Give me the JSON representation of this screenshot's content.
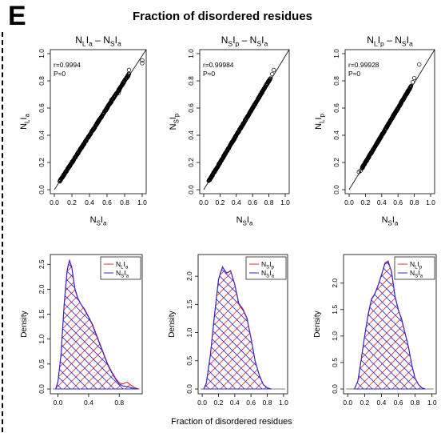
{
  "panel_letter": "E",
  "title": "Fraction of disordered residues",
  "bottom_xlabel": "Fraction of disordered residues",
  "colors": {
    "series1": "#e03030",
    "series2": "#2a2ad8",
    "axis": "#000000"
  },
  "chart_data": [
    {
      "type": "scatter",
      "title": {
        "main": "N",
        "main_sub": "L",
        "main2": "I",
        "main2_sub": "a",
        "sep": " – ",
        "ref": "N",
        "ref_sub": "S",
        "ref2": "I",
        "ref2_sub": "a"
      },
      "xlabel": {
        "a": "N",
        "a_sub": "S",
        "b": "I",
        "b_sub": "a"
      },
      "ylabel": {
        "a": "N",
        "a_sub": "L",
        "b": "I",
        "b_sub": "a"
      },
      "annotation": [
        "r=0.9994",
        "P≈0"
      ],
      "xlim": [
        0,
        1.0
      ],
      "ylim": [
        0,
        1.0
      ],
      "xticks": [
        "0.0",
        "0.2",
        "0.4",
        "0.6",
        "0.8",
        "1.0"
      ],
      "yticks": [
        "0.0",
        "0.2",
        "0.4",
        "0.6",
        "0.8",
        "1.0"
      ],
      "range": [
        0.06,
        0.85
      ],
      "outliers": [
        [
          0.65,
          0.66
        ],
        [
          0.68,
          0.68
        ],
        [
          0.73,
          0.71
        ],
        [
          0.74,
          0.73
        ],
        [
          0.84,
          0.84
        ],
        [
          0.85,
          0.88
        ],
        [
          1.0,
          0.95
        ],
        [
          1.0,
          0.93
        ]
      ],
      "diagonal": true
    },
    {
      "type": "scatter",
      "title": {
        "main": "N",
        "main_sub": "S",
        "main2": "I",
        "main2_sub": "p",
        "sep": " – ",
        "ref": "N",
        "ref_sub": "S",
        "ref2": "I",
        "ref2_sub": "a"
      },
      "xlabel": {
        "a": "N",
        "a_sub": "S",
        "b": "I",
        "b_sub": "a"
      },
      "ylabel": {
        "a": "N",
        "a_sub": "S",
        "b": "I",
        "b_sub": "p"
      },
      "annotation": [
        "r=0.99984",
        "P≈0"
      ],
      "xlim": [
        0,
        1.0
      ],
      "ylim": [
        0,
        1.0
      ],
      "xticks": [
        "0.0",
        "0.2",
        "0.4",
        "0.6",
        "0.8",
        "1.0"
      ],
      "yticks": [
        "0.0",
        "0.2",
        "0.4",
        "0.6",
        "0.8",
        "1.0"
      ],
      "range": [
        0.06,
        0.82
      ],
      "outliers": [
        [
          0.84,
          0.85
        ],
        [
          0.86,
          0.88
        ]
      ],
      "diagonal": true
    },
    {
      "type": "scatter",
      "title": {
        "main": "N",
        "main_sub": "L",
        "main2": "I",
        "main2_sub": "p",
        "sep": " – ",
        "ref": "N",
        "ref_sub": "S",
        "ref2": "I",
        "ref2_sub": "a"
      },
      "xlabel": {
        "a": "N",
        "a_sub": "S",
        "b": "I",
        "b_sub": "a"
      },
      "ylabel": {
        "a": "N",
        "a_sub": "L",
        "b": "I",
        "b_sub": "p"
      },
      "annotation": [
        "r=0.99928",
        "P≈0"
      ],
      "xlim": [
        0,
        1.0
      ],
      "ylim": [
        0,
        1.0
      ],
      "xticks": [
        "0.0",
        "0.2",
        "0.4",
        "0.6",
        "0.8",
        "1.0"
      ],
      "yticks": [
        "0.0",
        "0.2",
        "0.4",
        "0.6",
        "0.8",
        "1.0"
      ],
      "range": [
        0.16,
        0.76
      ],
      "outliers": [
        [
          0.12,
          0.13
        ],
        [
          0.14,
          0.14
        ],
        [
          0.16,
          0.16
        ],
        [
          0.78,
          0.79
        ],
        [
          0.8,
          0.82
        ],
        [
          0.86,
          0.92
        ]
      ],
      "diagonal": true
    },
    {
      "type": "area",
      "ylabel": "Density",
      "xlim": [
        -0.1,
        1.1
      ],
      "ylim": [
        0,
        2.6
      ],
      "xticks": [
        "0.0",
        "0.4",
        "0.8"
      ],
      "xtick_values": [
        0.0,
        0.4,
        0.8
      ],
      "yticks": [
        "0.0",
        "0.5",
        "1.0",
        "1.5",
        "2.0",
        "2.5"
      ],
      "ytick_values": [
        0,
        0.5,
        1.0,
        1.5,
        2.0,
        2.5
      ],
      "legend": [
        {
          "a": "N",
          "a_sub": "L",
          "b": "I",
          "b_sub": "a",
          "color": "#e03030"
        },
        {
          "a": "N",
          "a_sub": "S",
          "b": "I",
          "b_sub": "a",
          "color": "#2a2ad8"
        }
      ],
      "series": [
        {
          "x": [
            -0.03,
            0.0,
            0.04,
            0.08,
            0.12,
            0.15,
            0.18,
            0.22,
            0.26,
            0.3,
            0.35,
            0.4,
            0.45,
            0.5,
            0.55,
            0.6,
            0.65,
            0.7,
            0.75,
            0.8,
            0.85,
            0.9,
            0.95,
            1.0,
            1.05
          ],
          "y": [
            0.0,
            0.15,
            0.7,
            1.7,
            2.4,
            2.58,
            2.45,
            2.0,
            1.8,
            1.7,
            1.6,
            1.45,
            1.3,
            1.1,
            0.9,
            0.7,
            0.5,
            0.35,
            0.22,
            0.12,
            0.1,
            0.14,
            0.08,
            0.03,
            0.0
          ]
        },
        {
          "x": [
            -0.03,
            0.0,
            0.04,
            0.08,
            0.12,
            0.15,
            0.18,
            0.22,
            0.26,
            0.3,
            0.35,
            0.4,
            0.45,
            0.5,
            0.55,
            0.6,
            0.65,
            0.7,
            0.75,
            0.8,
            0.85,
            0.9,
            0.95,
            1.0,
            1.05
          ],
          "y": [
            0.0,
            0.15,
            0.7,
            1.68,
            2.38,
            2.57,
            2.44,
            2.02,
            1.82,
            1.7,
            1.58,
            1.44,
            1.28,
            1.08,
            0.88,
            0.68,
            0.48,
            0.33,
            0.2,
            0.1,
            0.06,
            0.05,
            0.03,
            0.01,
            0.0
          ]
        }
      ]
    },
    {
      "type": "area",
      "ylabel": "Density",
      "xlim": [
        -0.05,
        1.05
      ],
      "ylim": [
        0,
        2.3
      ],
      "xticks": [
        "0.0",
        "0.2",
        "0.4",
        "0.6",
        "0.8",
        "1.0"
      ],
      "xtick_values": [
        0.0,
        0.2,
        0.4,
        0.6,
        0.8,
        1.0
      ],
      "yticks": [
        "0.0",
        "0.5",
        "1.0",
        "1.5",
        "2.0"
      ],
      "ytick_values": [
        0,
        0.5,
        1.0,
        1.5,
        2.0
      ],
      "legend": [
        {
          "a": "N",
          "a_sub": "S",
          "b": "I",
          "b_sub": "p",
          "color": "#e03030"
        },
        {
          "a": "N",
          "a_sub": "S",
          "b": "I",
          "b_sub": "a",
          "color": "#2a2ad8"
        }
      ],
      "series": [
        {
          "x": [
            0.02,
            0.05,
            0.1,
            0.15,
            0.2,
            0.25,
            0.3,
            0.35,
            0.4,
            0.45,
            0.5,
            0.55,
            0.6,
            0.65,
            0.7,
            0.75,
            0.8,
            0.85
          ],
          "y": [
            0.0,
            0.1,
            0.6,
            1.3,
            1.95,
            2.17,
            2.05,
            2.1,
            1.85,
            1.5,
            1.4,
            1.25,
            0.9,
            0.5,
            0.25,
            0.08,
            0.02,
            0.0
          ]
        },
        {
          "x": [
            0.02,
            0.05,
            0.1,
            0.15,
            0.2,
            0.25,
            0.3,
            0.35,
            0.4,
            0.45,
            0.5,
            0.55,
            0.6,
            0.65,
            0.7,
            0.75,
            0.8,
            0.85
          ],
          "y": [
            0.0,
            0.1,
            0.6,
            1.3,
            1.94,
            2.16,
            2.06,
            2.09,
            1.86,
            1.52,
            1.42,
            1.26,
            0.9,
            0.5,
            0.25,
            0.08,
            0.02,
            0.0
          ]
        }
      ]
    },
    {
      "type": "area",
      "ylabel": "Density",
      "xlim": [
        -0.05,
        1.05
      ],
      "ylim": [
        0,
        2.45
      ],
      "xticks": [
        "0.0",
        "0.2",
        "0.4",
        "0.6",
        "0.8",
        "1.0"
      ],
      "xtick_values": [
        0.0,
        0.2,
        0.4,
        0.6,
        0.8,
        1.0
      ],
      "yticks": [
        "0.0",
        "0.5",
        "1.0",
        "1.5",
        "2.0"
      ],
      "ytick_values": [
        0,
        0.5,
        1.0,
        1.5,
        2.0
      ],
      "legend": [
        {
          "a": "N",
          "a_sub": "L",
          "b": "I",
          "b_sub": "p",
          "color": "#e03030"
        },
        {
          "a": "N",
          "a_sub": "S",
          "b": "I",
          "b_sub": "a",
          "color": "#2a2ad8"
        }
      ],
      "series": [
        {
          "x": [
            0.08,
            0.12,
            0.16,
            0.2,
            0.24,
            0.28,
            0.32,
            0.36,
            0.4,
            0.44,
            0.48,
            0.52,
            0.56,
            0.6,
            0.64,
            0.68,
            0.72,
            0.76,
            0.8,
            0.84,
            0.88,
            0.92
          ],
          "y": [
            0.0,
            0.15,
            0.55,
            1.0,
            1.4,
            1.7,
            1.8,
            1.95,
            2.15,
            2.38,
            2.42,
            2.2,
            1.75,
            1.5,
            1.3,
            1.05,
            0.8,
            0.45,
            0.2,
            0.08,
            0.02,
            0.0
          ]
        },
        {
          "x": [
            0.08,
            0.12,
            0.16,
            0.2,
            0.24,
            0.28,
            0.32,
            0.36,
            0.4,
            0.44,
            0.48,
            0.52,
            0.56,
            0.6,
            0.64,
            0.68,
            0.72,
            0.76,
            0.8,
            0.84,
            0.88,
            0.92
          ],
          "y": [
            0.0,
            0.15,
            0.55,
            1.0,
            1.38,
            1.68,
            1.79,
            1.96,
            2.16,
            2.36,
            2.4,
            2.22,
            1.77,
            1.5,
            1.32,
            1.06,
            0.8,
            0.46,
            0.2,
            0.08,
            0.02,
            0.0
          ]
        }
      ]
    }
  ]
}
